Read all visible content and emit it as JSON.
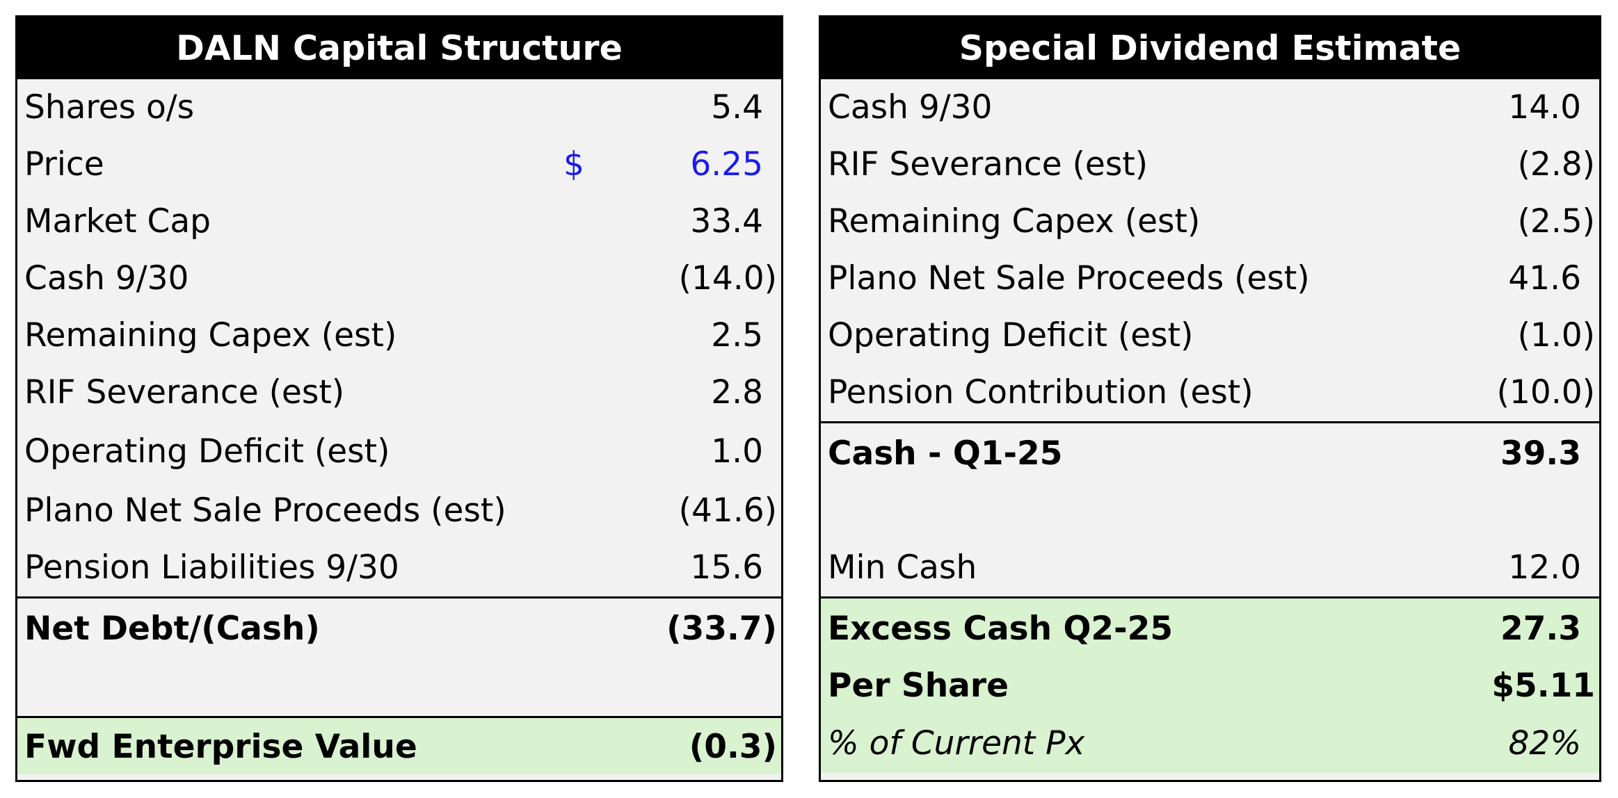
{
  "capital_structure": {
    "title": "DALN Capital Structure",
    "rows": [
      {
        "label": "Shares o/s",
        "value": "5.4"
      },
      {
        "label": "Price",
        "currency": "$",
        "value": "6.25"
      },
      {
        "label": "Market Cap",
        "value": "33.4"
      },
      {
        "label": "Cash 9/30",
        "value": "(14.0)"
      },
      {
        "label": "Remaining Capex (est)",
        "value": "2.5"
      },
      {
        "label": "RIF Severance (est)",
        "value": "2.8"
      },
      {
        "label": "Operating Deficit (est)",
        "value": "1.0"
      },
      {
        "label": "Plano Net Sale Proceeds (est)",
        "value": "(41.6)"
      },
      {
        "label": "Pension Liabilities 9/30",
        "value": "15.6"
      }
    ],
    "net_debt": {
      "label": "Net Debt/(Cash)",
      "value": "(33.7)"
    },
    "fwd_ev": {
      "label": "Fwd Enterprise Value",
      "value": "(0.3)"
    }
  },
  "special_dividend": {
    "title": "Special Dividend Estimate",
    "rows": [
      {
        "label": "Cash 9/30",
        "value": "14.0"
      },
      {
        "label": "RIF Severance (est)",
        "value": "(2.8)"
      },
      {
        "label": "Remaining Capex (est)",
        "value": "(2.5)"
      },
      {
        "label": "Plano Net Sale Proceeds (est)",
        "value": "41.6"
      },
      {
        "label": "Operating Deficit (est)",
        "value": "(1.0)"
      },
      {
        "label": "Pension Contribution (est)",
        "value": "(10.0)"
      }
    ],
    "cash_q1": {
      "label": "Cash - Q1-25",
      "value": "39.3"
    },
    "min_cash": {
      "label": "Min Cash",
      "value": "12.0"
    },
    "excess_cash": {
      "label": "Excess Cash Q2-25",
      "value": "27.3"
    },
    "per_share": {
      "label": "Per Share",
      "value": "$5.11"
    },
    "pct_current": {
      "label": "% of Current Px",
      "value": "82%"
    }
  },
  "colors": {
    "header_bg": "#000000",
    "header_text": "#ffffff",
    "cell_bg": "#f2f2f2",
    "highlight_bg": "#d9f2d0",
    "input_blue": "#1a1aee"
  }
}
